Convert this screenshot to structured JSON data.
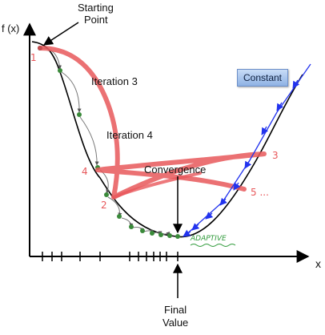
{
  "labels": {
    "y_axis": "f (x)",
    "x_axis": "x",
    "starting_point_line1": "Starting",
    "starting_point_line2": "Point",
    "iteration3": "Iteration 3",
    "iteration4": "Iteration 4",
    "convergence": "Convergence",
    "final_value_line1": "Final",
    "final_value_line2": "Value",
    "constant": "Constant"
  },
  "handwritten": {
    "num1": "1",
    "num2": "2",
    "num3": "3",
    "num4": "4",
    "num5": "5 ...",
    "adaptive": "ADAPTIVE"
  },
  "colors": {
    "curve": "#000000",
    "adaptive_path": "#e8585b",
    "constant_arrows": "#2233ee",
    "step_dots": "#3a8a3a",
    "constant_box": "#a9c6ee"
  }
}
